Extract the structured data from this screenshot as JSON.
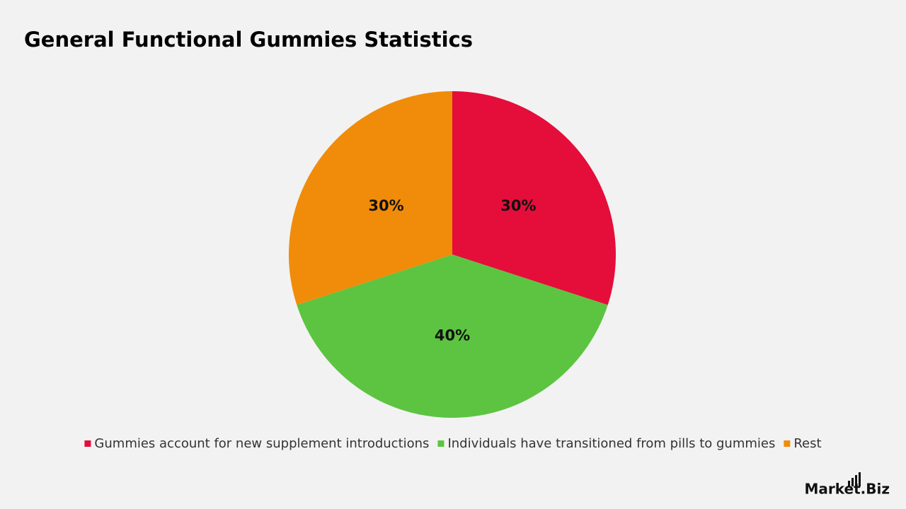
{
  "chart_data": {
    "type": "pie",
    "title": "General Functional Gummies Statistics",
    "categories": [
      "Gummies account for new supplement introductions",
      "Individuals have transitioned from pills to gummies",
      "Rest"
    ],
    "values": [
      30,
      40,
      30
    ],
    "value_labels": [
      "30%",
      "40%",
      "30%"
    ],
    "colors": [
      "#e50d3a",
      "#5cc441",
      "#f08c0a"
    ],
    "legend": "bottom"
  },
  "logo": "Market.Biz"
}
